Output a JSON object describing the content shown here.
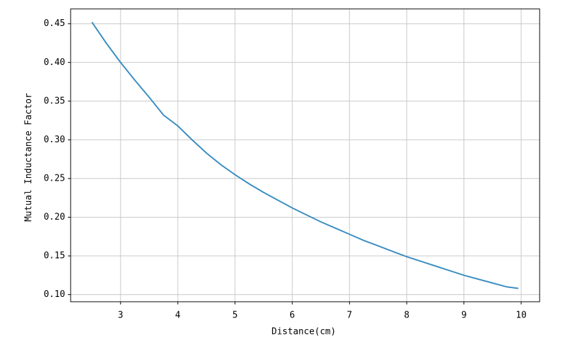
{
  "chart_data": {
    "type": "line",
    "x_label": "Distance(cm)",
    "y_label": "Mutual Inductance Factor",
    "x": [
      2.5,
      2.75,
      3.0,
      3.25,
      3.5,
      3.75,
      4.0,
      4.25,
      4.5,
      4.75,
      5.0,
      5.25,
      5.5,
      5.75,
      6.0,
      6.25,
      6.5,
      6.75,
      7.0,
      7.25,
      7.5,
      7.75,
      8.0,
      8.25,
      8.5,
      8.75,
      9.0,
      9.25,
      9.5,
      9.75,
      9.95
    ],
    "series": [
      {
        "color": "#3a8dc1",
        "values": [
          0.452,
          0.425,
          0.4,
          0.377,
          0.355,
          0.332,
          0.318,
          0.3,
          0.283,
          0.268,
          0.255,
          0.243,
          0.232,
          0.222,
          0.212,
          0.203,
          0.194,
          0.186,
          0.178,
          0.17,
          0.163,
          0.156,
          0.149,
          0.143,
          0.137,
          0.131,
          0.125,
          0.12,
          0.115,
          0.11,
          0.108
        ]
      }
    ],
    "xlim": [
      2.1275,
      10.3225
    ],
    "ylim": [
      0.0908,
      0.4692
    ],
    "xticks": [
      3,
      4,
      5,
      6,
      7,
      8,
      9,
      10
    ],
    "yticks": [
      {
        "value": 0.1,
        "label": "0.10"
      },
      0.15,
      {
        "value": 0.2,
        "label": "0.20"
      },
      0.25,
      {
        "value": 0.3,
        "label": "0.30"
      },
      0.35,
      {
        "value": 0.4,
        "label": "0.40"
      },
      0.45
    ],
    "grid": true
  }
}
